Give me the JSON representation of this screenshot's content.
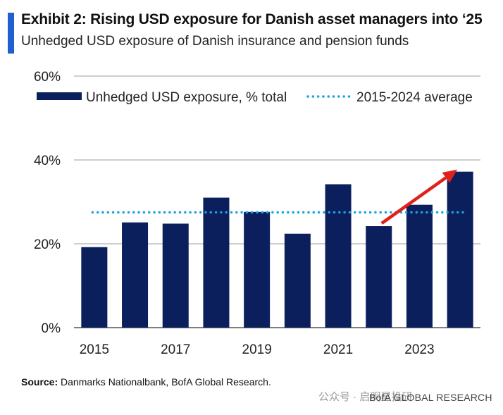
{
  "header": {
    "title": "Exhibit 2: Rising USD exposure for Danish asset managers into ‘25",
    "subtitle": "Unhedged USD exposure of Danish insurance and pension funds"
  },
  "chart_data": {
    "type": "bar",
    "categories": [
      "2015",
      "2016",
      "2017",
      "2018",
      "2019",
      "2020",
      "2021",
      "2022",
      "2023",
      "2024"
    ],
    "series": [
      {
        "name": "Unhedged USD exposure, % total",
        "values": [
          19.2,
          25.1,
          24.8,
          31.0,
          27.6,
          22.4,
          34.2,
          24.2,
          29.3,
          37.2
        ],
        "color": "#0b1f5c"
      }
    ],
    "average": {
      "name": "2015-2024 average",
      "value": 27.5,
      "color": "#1aa3dd"
    },
    "x_tick_labels": [
      "2015",
      "",
      "2017",
      "",
      "2019",
      "",
      "2021",
      "",
      "2023",
      ""
    ],
    "y_tick_labels": [
      "0%",
      "20%",
      "40%",
      "60%"
    ],
    "y_ticks": [
      0,
      20,
      40,
      60
    ],
    "ylim": [
      0,
      60
    ],
    "legend_position": "top",
    "grid": true,
    "annotation_arrow": {
      "from_category": "2022",
      "to_category": "2024",
      "color": "#e0201b"
    },
    "title": "",
    "xlabel": "",
    "ylabel": ""
  },
  "footer": {
    "source_label": "Source:",
    "source_text": " Danmarks Nationalbank, BofA Global Research.",
    "watermark": "公众号 · 启明星投研",
    "brand": "BofA GLOBAL RESEARCH"
  }
}
